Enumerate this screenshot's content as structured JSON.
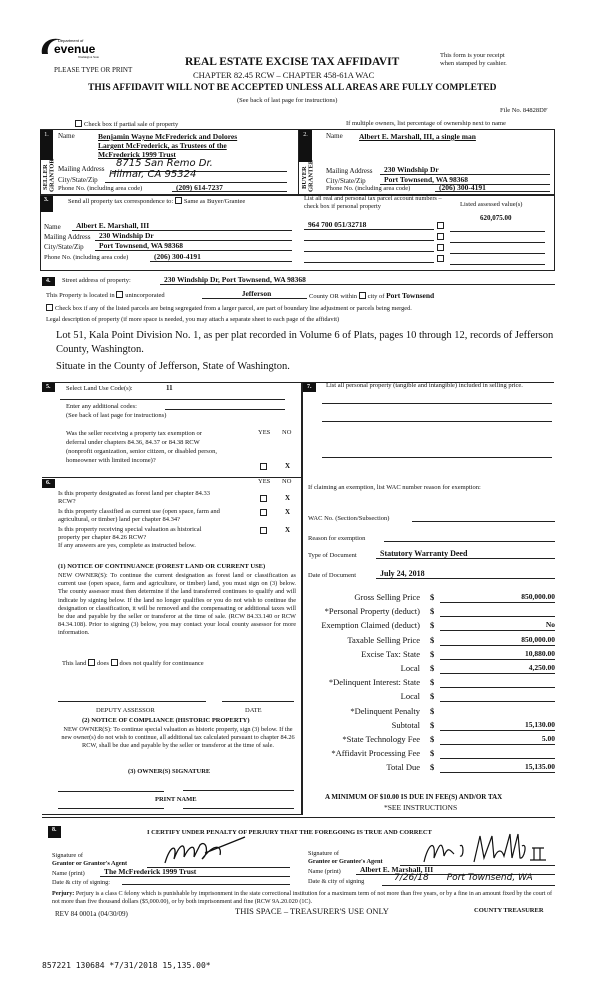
{
  "header": {
    "logo_text": "Department of Revenue Washington State",
    "please_type": "PLEASE TYPE OR PRINT",
    "title": "REAL ESTATE EXCISE TAX AFFIDAVIT",
    "chapter": "CHAPTER 82.45 RCW – CHAPTER 458-61A WAC",
    "warning": "THIS AFFIDAVIT WILL NOT BE ACCEPTED UNLESS ALL AREAS ARE FULLY COMPLETED",
    "see_back": "(See back of last page for instructions)",
    "receipt_note_1": "This form is your receipt",
    "receipt_note_2": "when stamped by cashier.",
    "file_no": "File No. 84828DF",
    "partial_sale": "Check box if partial sale of property",
    "multiple_owners": "If multiple owners, list percentage of ownership next to name"
  },
  "seller": {
    "num": "1.",
    "side_label": "SELLER GRANTOR",
    "name_label": "Name",
    "name_lines": [
      "Benjamin Wayne McFrederick and Dolores",
      "Largent McFrederick, as Trustees of the",
      "McFrederick 1999 Trust"
    ],
    "mailing_label": "Mailing Address",
    "mailing": "8715 San Remo Dr.",
    "city_label": "City/State/Zip",
    "city": "Hilmar, CA 95324",
    "phone_label": "Phone No. (including area code)",
    "phone": "(209) 614-7237"
  },
  "buyer": {
    "num": "2.",
    "side_label": "BUYER GRANTEE",
    "name_label": "Name",
    "name": "Albert E. Marshall, III, a single man",
    "mailing_label": "Mailing Address",
    "mailing": "230 Windship Dr",
    "city_label": "City/State/Zip",
    "city": "Port Townsend, WA 98368",
    "phone_label": "Phone No. (including area code)",
    "phone": "(206) 300-4191"
  },
  "section3": {
    "num": "3.",
    "send_label": "Send all property tax correspondence to:",
    "same_as": "Same as Buyer/Grantee",
    "name_label": "Name",
    "name": "Albert E. Marshall, III",
    "mailing_label": "Mailing Address",
    "mailing": "230 Windship Dr",
    "city_label": "City/State/Zip",
    "city": "Port Townsend, WA 98368",
    "phone_label": "Phone No. (including area code)",
    "phone": "(206) 300-4191",
    "parcel_header": "List all real and personal tax parcel account numbers – check box if personal property",
    "assessed_header": "Listed assessed value(s)",
    "parcel": "964 700 051/32718",
    "assessed": "620,075.00"
  },
  "section4": {
    "num": "4.",
    "street_label": "Street address of property:",
    "street": "230 Windship Dr, Port Townsend, WA  98368",
    "located_label": "This Property is located in",
    "unincorporated": "unincorporated",
    "county": "Jefferson",
    "county_or": "County OR  within",
    "city_of": "city of",
    "city": "Port Townsend",
    "segregated": "Check box if any of the listed parcels are being segregated from a larger parcel, are part of boundary line adjustment or parcels being merged.",
    "legal_label": "Legal description of property (if more space is needed, you may attach a separate sheet to each page of the affidavit)",
    "legal_1": "Lot 51, Kala Point Division No. 1, as per plat recorded in Volume 6 of Plats, pages 10 through 12, records of Jefferson",
    "legal_2": "County, Washington.",
    "situate": "Situate in the County of Jefferson, State of Washington."
  },
  "section5": {
    "num": "5.",
    "land_use_label": "Select Land Use Code(s):",
    "land_use": "11",
    "additional": "Enter any additional codes:",
    "see_back": "(See back of last page for instructions)",
    "question": [
      "Was the seller receiving a property tax exemption or",
      "deferral under chapters 84.36, 84.37 or 84.38 RCW",
      "(nonprofit organization, senior citizen, or disabled person,",
      "homeowner with limited income)?"
    ],
    "yes": "YES",
    "no": "NO",
    "answer": "X"
  },
  "section6": {
    "num": "6.",
    "yes": "YES",
    "no": "NO",
    "q1": [
      "Is this property designated as forest land per chapter 84.33",
      "RCW?"
    ],
    "q2": [
      "Is this property classified as current use (open space, farm and",
      "agricultural, or timber) land per chapter 84.34?"
    ],
    "q3": [
      "Is this property receiving special valuation as historical",
      "property per chapter 84.26 RCW?"
    ],
    "answer": "X",
    "if_yes": "If any answers are yes, complete as instructed below.",
    "notice1_title": "(1) NOTICE OF CONTINUANCE (FOREST LAND OR CURRENT USE)",
    "notice1": "NEW OWNER(S): To continue the current designation as forest land or classification as current use (open space, farm and agriculture, or timber) land, you must sign on (3) below. The county assessor must then determine if the land transferred continues to qualify and will indicate by signing below. If the land no longer qualifies or you do not wish to continue the designation or classification, it will be removed and the compensating or additional taxes will be due and payable by the seller or transferor at the time of sale. (RCW 84.33.140 or RCW 84.34.108). Prior to signing (3) below, you may contact your local county assessor for more information.",
    "this_land": "This land",
    "does": "does",
    "does_not": "does not  qualify for continuance",
    "deputy": "DEPUTY ASSESSOR",
    "date": "DATE",
    "notice2_title": "(2) NOTICE OF COMPLIANCE (HISTORIC PROPERTY)",
    "notice2": "NEW OWNER(S): To continue special valuation as historic property, sign (3) below. If the new owner(s) do not wish to continue, all additional tax calculated pursuant to chapter 84.26 RCW, shall be due and payable by the seller or transferor at the time of sale.",
    "owner_sig": "(3)  OWNER(S) SIGNATURE",
    "print_name": "PRINT NAME"
  },
  "section7": {
    "num": "7.",
    "personal_label": "List all personal property (tangible and intangible) included in selling price.",
    "exemption_label": "If claiming an exemption, list WAC number reason for exemption:",
    "wac_label": "WAC No. (Section/Subsection)",
    "reason_label": "Reason for exemption",
    "doc_type_label": "Type of Document",
    "doc_type": "Statutory Warranty Deed",
    "doc_date_label": "Date of Document",
    "doc_date": "July 24, 2018",
    "amounts": [
      {
        "label": "Gross Selling Price",
        "value": "850,000.00"
      },
      {
        "label": "*Personal Property (deduct)",
        "value": ""
      },
      {
        "label": "Exemption Claimed (deduct)",
        "value": "No"
      },
      {
        "label": "Taxable Selling Price",
        "value": "850,000.00"
      },
      {
        "label": "Excise Tax:  State",
        "value": "10,880.00"
      },
      {
        "label": "Local",
        "value": "4,250.00"
      },
      {
        "label": "*Delinquent Interest:  State",
        "value": ""
      },
      {
        "label": "Local",
        "value": ""
      },
      {
        "label": "*Delinquent Penalty",
        "value": ""
      },
      {
        "label": "Subtotal",
        "value": "15,130.00"
      },
      {
        "label": "*State Technology Fee",
        "value": "5.00"
      },
      {
        "label": "*Affidavit Processing Fee",
        "value": ""
      },
      {
        "label": "Total Due",
        "value": "15,135.00"
      }
    ],
    "currency": "$",
    "minimum": "A MINIMUM OF $10.00 IS DUE IN FEE(S) AND/OR TAX",
    "see_instructions": "*SEE INSTRUCTIONS"
  },
  "section8": {
    "num": "8.",
    "certify": "I CERTIFY UNDER PENALTY OF PERJURY THAT THE FOREGOING IS TRUE AND CORRECT",
    "grantor_sig_1": "Signature of",
    "grantor_sig_2": "Grantor or Grantor's Agent",
    "grantor_name_label": "Name (print)",
    "grantor_name": "The McFrederick 1999 Trust",
    "grantor_date_label": "Date & city of signing:",
    "grantee_sig_1": "Signature of",
    "grantee_sig_2": "Grantee or Grantee's Agent",
    "grantee_name_label": "Name (print)",
    "grantee_name": "Albert E. Marshall, III",
    "grantee_date_label": "Date & city of signing",
    "grantee_date": "7/26/18",
    "grantee_city": "Port Townsend, WA",
    "perjury_label": "Perjury:",
    "perjury": "Perjury is a class C felony which is punishable by imprisonment in the state correctional institution for a maximum term of not more than five years, or by a fine in an amount fixed by the court of not more than five thousand dollars ($5,000.00), or by both imprisonment and fine (RCW 9A.20.020 (1C).",
    "rev": "REV 84 0001a (04/30/09)",
    "treasurer_space": "THIS SPACE – TREASURER'S USE ONLY",
    "county_treasurer": "COUNTY TREASURER"
  },
  "stamp": "857221 130684 *7/31/2018 15,135.00*"
}
